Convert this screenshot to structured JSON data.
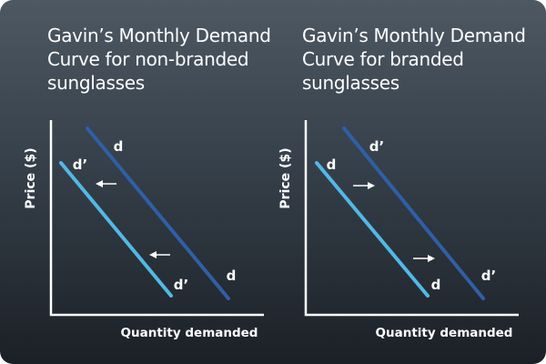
{
  "colors": {
    "axis": "#ffffff",
    "original_curve": "#2f5fa6",
    "shifted_curve": "#52b8e6",
    "arrow": "#ffffff"
  },
  "panels": [
    {
      "title_line1": "Gavin’s Monthly Demand",
      "title_line2": "Curve for non-branded",
      "title_line3": "sunglasses",
      "y_label": "Price ($)",
      "x_label": "Quantity demanded",
      "dark_curve_top_label": "d",
      "dark_curve_bottom_label": "d",
      "light_curve_top_label": "d’",
      "light_curve_bottom_label": "d’",
      "arrow_icon": "arrow-left-icon"
    },
    {
      "title_line1": "Gavin’s Monthly Demand",
      "title_line2": "Curve for branded",
      "title_line3": "sunglasses",
      "y_label": "Price ($)",
      "x_label": "Quantity demanded",
      "dark_curve_top_label": "d’",
      "dark_curve_bottom_label": "d’",
      "light_curve_top_label": "d",
      "light_curve_bottom_label": "d",
      "arrow_icon": "arrow-right-icon"
    }
  ]
}
